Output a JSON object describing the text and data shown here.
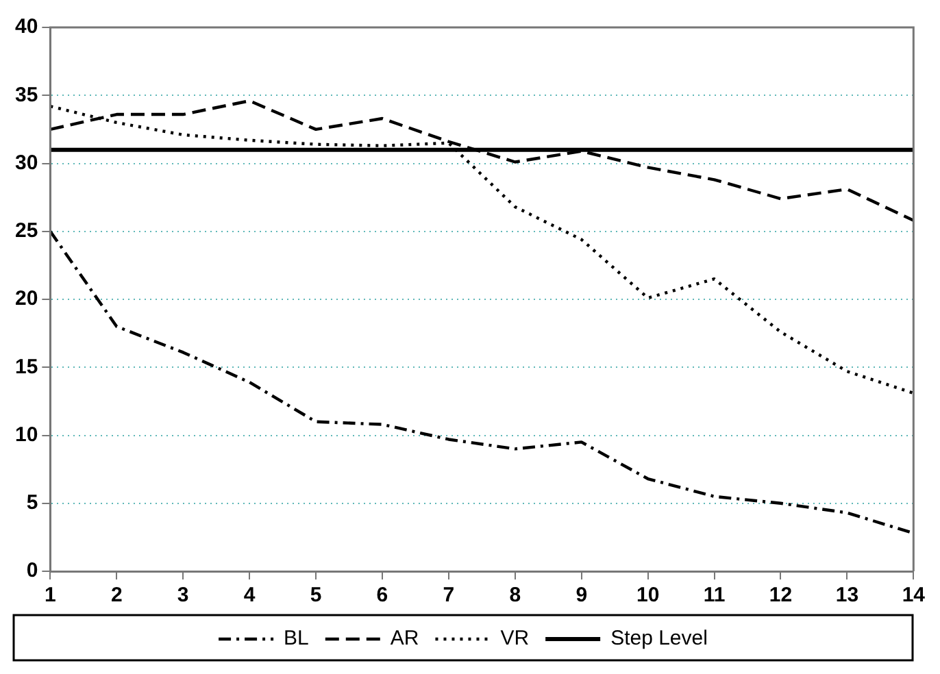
{
  "chart_data": {
    "type": "line",
    "x": [
      1,
      2,
      3,
      4,
      5,
      6,
      7,
      8,
      9,
      10,
      11,
      12,
      13,
      14
    ],
    "series": [
      {
        "name": "BL",
        "color": "#000000",
        "line_style": "dashdot",
        "values": [
          25,
          18,
          16.1,
          13.9,
          11,
          10.8,
          9.7,
          9,
          9.5,
          6.8,
          5.5,
          5,
          4.3,
          2.8
        ]
      },
      {
        "name": "AR",
        "color": "#000000",
        "line_style": "dashed",
        "values": [
          32.5,
          33.6,
          33.6,
          34.6,
          32.5,
          33.3,
          31.6,
          30.1,
          30.9,
          29.7,
          28.8,
          27.4,
          28.1,
          25.8
        ]
      },
      {
        "name": "VR",
        "color": "#000000",
        "line_style": "dotted",
        "values": [
          34.2,
          33,
          32.1,
          31.7,
          31.4,
          31.3,
          31.5,
          26.8,
          24.4,
          20.1,
          21.5,
          17.6,
          14.7,
          13.1
        ]
      },
      {
        "name": "Step Level",
        "color": "#000000",
        "line_style": "solid",
        "x": [
          1,
          14
        ],
        "values": [
          31,
          31
        ]
      }
    ],
    "xlim": [
      1,
      14
    ],
    "xticks": [
      1,
      2,
      3,
      4,
      5,
      6,
      7,
      8,
      9,
      10,
      11,
      12,
      13,
      14
    ],
    "ylim": [
      0,
      40
    ],
    "yticks": [
      0,
      5,
      10,
      15,
      20,
      25,
      30,
      35,
      40
    ],
    "grid": "y",
    "legend": "bottom",
    "marker": "none"
  }
}
